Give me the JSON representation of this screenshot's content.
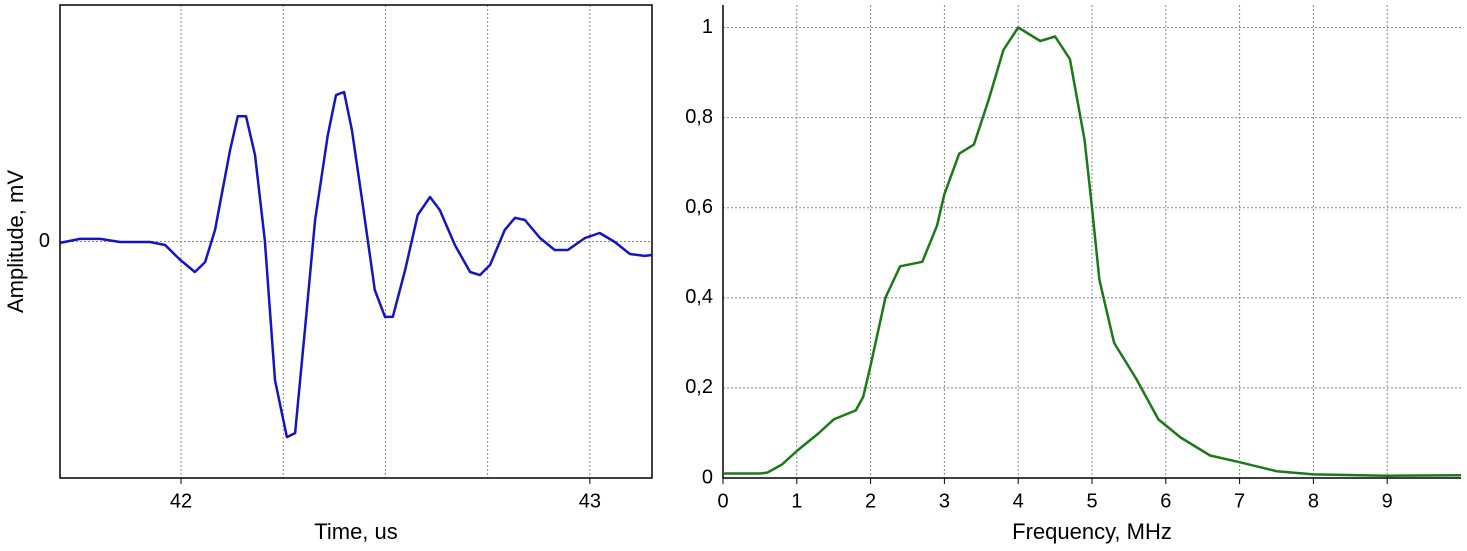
{
  "chart_data": [
    {
      "type": "line",
      "xlabel": "Time, us",
      "ylabel": "Amplitude, mV",
      "xlim": [
        41.704,
        43.152
      ],
      "ylim": [
        -1,
        1
      ],
      "xticks": [
        42,
        43
      ],
      "yticks": [
        0
      ],
      "xgrid": [
        42,
        42.25,
        42.5,
        42.75,
        43
      ],
      "grid": true,
      "series": [
        {
          "color": "#1414c4",
          "x": [
            41.704,
            41.753,
            41.802,
            41.851,
            41.924,
            41.961,
            41.998,
            42.034,
            42.059,
            42.083,
            42.12,
            42.139,
            42.159,
            42.181,
            42.205,
            42.23,
            42.259,
            42.279,
            42.303,
            42.328,
            42.359,
            42.379,
            42.399,
            42.418,
            42.443,
            42.474,
            42.499,
            42.518,
            42.548,
            42.579,
            42.609,
            42.633,
            42.67,
            42.707,
            42.731,
            42.756,
            42.792,
            42.817,
            42.841,
            42.878,
            42.914,
            42.946,
            42.988,
            43.024,
            43.061,
            43.098,
            43.134,
            43.152
          ],
          "values": [
            -0.006,
            0.011,
            0.011,
            -0.002,
            -0.002,
            -0.015,
            -0.078,
            -0.129,
            -0.087,
            0.048,
            0.387,
            0.53,
            0.53,
            0.366,
            0.006,
            -0.586,
            -0.827,
            -0.81,
            -0.374,
            0.091,
            0.45,
            0.619,
            0.632,
            0.471,
            0.175,
            -0.205,
            -0.319,
            -0.319,
            -0.121,
            0.112,
            0.188,
            0.133,
            -0.015,
            -0.129,
            -0.142,
            -0.099,
            0.049,
            0.1,
            0.091,
            0.015,
            -0.036,
            -0.036,
            0.015,
            0.036,
            -0.002,
            -0.053,
            -0.061,
            -0.057
          ]
        }
      ]
    },
    {
      "type": "line",
      "xlabel": "Frequency, MHz",
      "xlim": [
        0,
        10
      ],
      "ylim": [
        0,
        1.05
      ],
      "xticks": [
        0,
        1,
        2,
        3,
        4,
        5,
        6,
        7,
        8,
        9
      ],
      "yticks": [
        0,
        {
          "value": 0.2,
          "label": "0,2"
        },
        {
          "value": 0.4,
          "label": "0,4"
        },
        {
          "value": 0.6,
          "label": "0,6"
        },
        {
          "value": 0.8,
          "label": "0,8"
        },
        1
      ],
      "grid": true,
      "series": [
        {
          "color": "#1a7a1a",
          "x": [
            0,
            0.5,
            0.6,
            0.8,
            1,
            1.3,
            1.5,
            1.8,
            1.9,
            2,
            2.2,
            2.4,
            2.7,
            2.9,
            3,
            3.2,
            3.4,
            3.6,
            3.8,
            4,
            4.1,
            4.3,
            4.5,
            4.7,
            4.9,
            5,
            5.1,
            5.3,
            5.6,
            5.9,
            6.2,
            6.6,
            7,
            7.5,
            8,
            9,
            10
          ],
          "values": [
            0.01,
            0.01,
            0.012,
            0.03,
            0.06,
            0.1,
            0.13,
            0.15,
            0.18,
            0.25,
            0.4,
            0.47,
            0.48,
            0.56,
            0.63,
            0.72,
            0.74,
            0.84,
            0.95,
            1.0,
            0.99,
            0.97,
            0.98,
            0.93,
            0.75,
            0.6,
            0.44,
            0.3,
            0.22,
            0.13,
            0.09,
            0.05,
            0.035,
            0.015,
            0.008,
            0.005,
            0.006
          ]
        }
      ]
    }
  ]
}
